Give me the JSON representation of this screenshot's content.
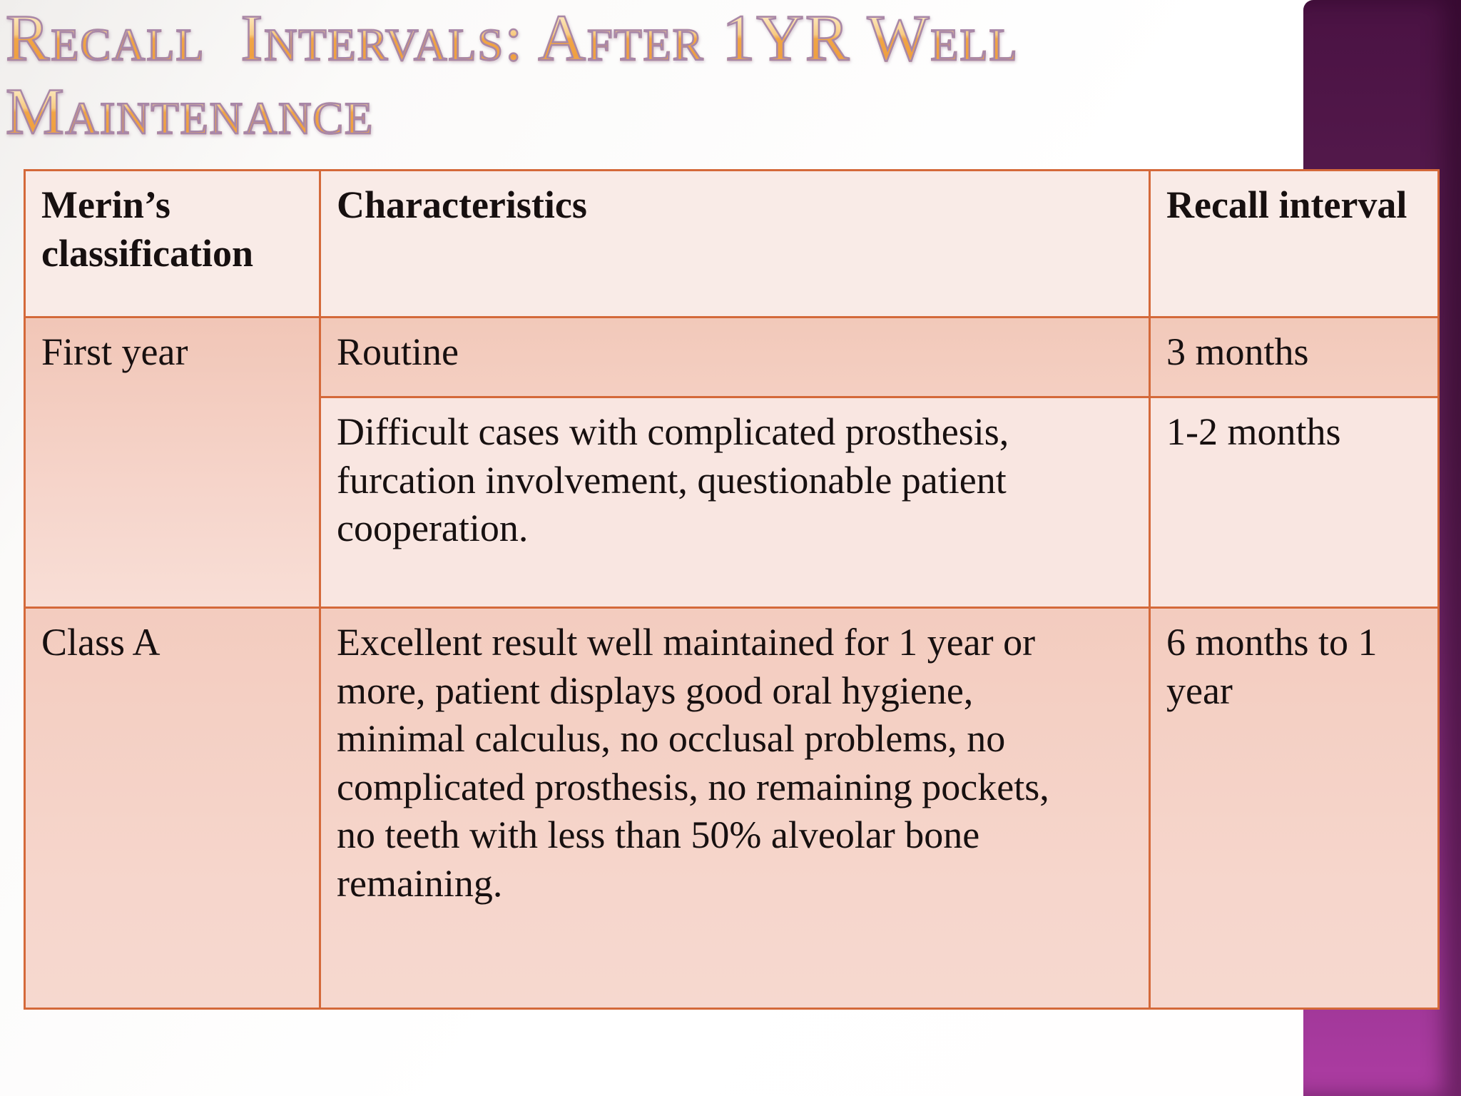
{
  "slide": {
    "title_lines": [
      "Recall  Intervals: After 1YR Well",
      "Maintenance"
    ]
  },
  "table": {
    "columns": [
      "Merin’s classification",
      "Characteristics",
      "Recall interval"
    ],
    "rows": [
      {
        "classification": "First year",
        "characteristics": "Routine",
        "recall_interval": "3 months"
      },
      {
        "characteristics": "Difficult cases with complicated prosthesis, furcation involvement, questionable patient cooperation.",
        "recall_interval": "1-2 months"
      },
      {
        "classification": "Class A",
        "characteristics": "Excellent result well maintained for 1 year or more, patient displays good oral hygiene, minimal calculus, no occlusal problems, no complicated prosthesis, no remaining pockets, no teeth with less than 50% alveolar bone remaining.",
        "recall_interval": "6 months to 1 year"
      }
    ]
  },
  "colors": {
    "table_border": "#d4693a",
    "header_cell_bg": "#f9ebe7",
    "band_dark": "#f3ccbf",
    "band_light": "#f9e6e1",
    "accent_bar_top": "#4a1243",
    "accent_bar_bottom": "#ad3ca2",
    "title_gradient_top": "#fef4dd",
    "title_gradient_bottom": "#f5b469",
    "title_outline": "#a887a8",
    "body_text": "#171010"
  }
}
